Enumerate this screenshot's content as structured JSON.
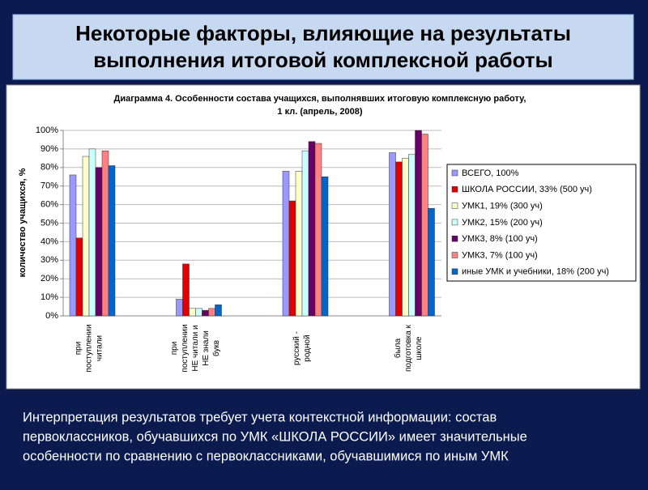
{
  "slide_title": [
    "Некоторые факторы, влияющие на результаты",
    "выполнения итоговой комплексной работы"
  ],
  "caption": [
    "Интерпретация результатов требует учета контекстной информации: состав",
    "первоклассников, обучавшихся по УМК «ШКОЛА РОССИИ» имеет значительные",
    "особенности по сравнению с первоклассниками, обучавшимися по иным УМК"
  ],
  "chart_data": {
    "type": "bar",
    "title": [
      "Диаграмма 4. Особенности состава учащихся, выполнявших итоговую комплексную работу,",
      "1 кл. (апрель, 2008)"
    ],
    "y_label": "количество учащихся, %",
    "categories": [
      [
        "при",
        "поступлении",
        "читали"
      ],
      [
        "при",
        "поступлении",
        "НЕ читали и",
        "НЕ знали",
        "букв"
      ],
      [
        "русский -",
        "родной"
      ],
      [
        "была",
        "подготовка к",
        "школе"
      ]
    ],
    "series": [
      {
        "name": "ВСЕГО, 100%",
        "color": "#9999ff",
        "values": [
          76,
          9,
          78,
          88
        ]
      },
      {
        "name": "ШКОЛА РОССИИ, 33% (500 уч)",
        "color": "#e00000",
        "values": [
          42,
          28,
          62,
          83
        ]
      },
      {
        "name": "УМК1, 19% (300 уч)",
        "color": "#ffffcc",
        "values": [
          86,
          4,
          78,
          85
        ]
      },
      {
        "name": "УМК2, 15% (200 уч)",
        "color": "#ccffff",
        "values": [
          90,
          4,
          89,
          87
        ]
      },
      {
        "name": "УМК3,  8% (100 уч)",
        "color": "#660066",
        "values": [
          80,
          3,
          94,
          100
        ]
      },
      {
        "name": "УМК3,  7% (100 уч)",
        "color": "#ff8080",
        "values": [
          89,
          4,
          93,
          98
        ]
      },
      {
        "name": "иные УМК и учебники,  18% (200 уч)",
        "color": "#0066cc",
        "values": [
          81,
          6,
          75,
          58
        ]
      }
    ],
    "ylim": [
      0,
      100
    ],
    "yticks": [
      {
        "value": 0,
        "label": "0%"
      },
      {
        "value": 10,
        "label": "10%"
      },
      {
        "value": 20,
        "label": "20%"
      },
      {
        "value": 30,
        "label": "30%"
      },
      {
        "value": 40,
        "label": "40%"
      },
      {
        "value": 50,
        "label": "50%"
      },
      {
        "value": 60,
        "label": "60%"
      },
      {
        "value": 70,
        "label": "70%"
      },
      {
        "value": 80,
        "label": "80%"
      },
      {
        "value": 90,
        "label": "90%"
      },
      {
        "value": 100,
        "label": "100%"
      }
    ],
    "grid": true,
    "legend": "right"
  }
}
